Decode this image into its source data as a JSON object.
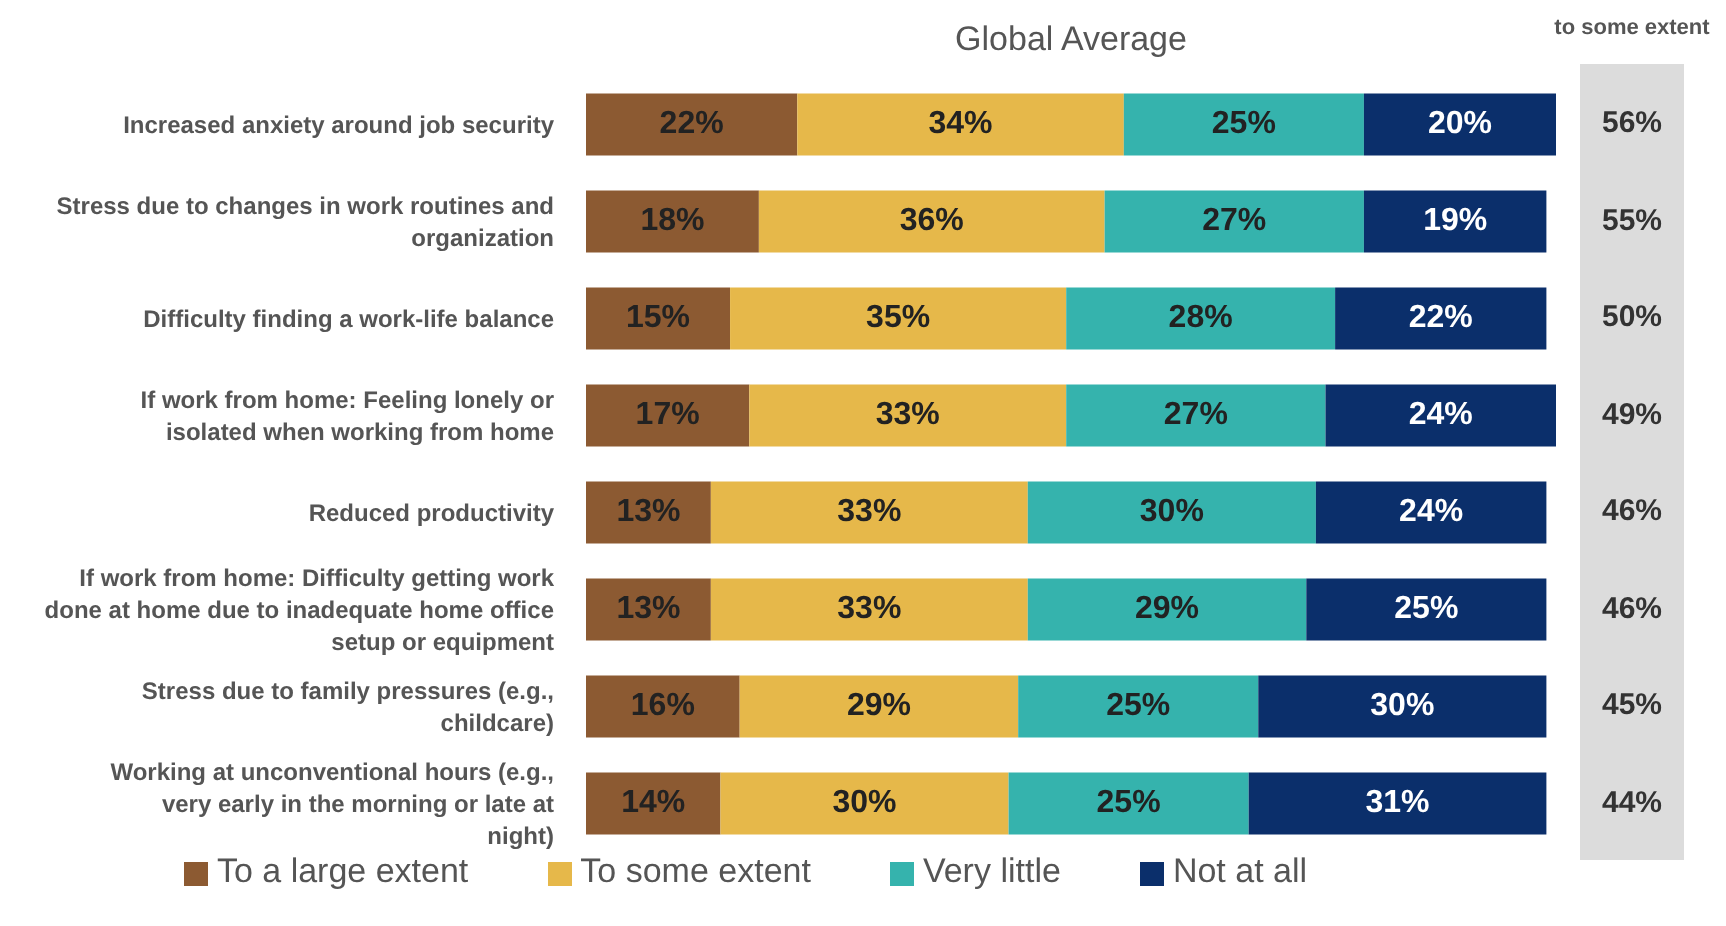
{
  "chart_data": {
    "type": "bar",
    "orientation": "horizontal",
    "stacked": true,
    "title": "Global Average",
    "categories": [
      "Increased anxiety around job security",
      "Stress due to changes in work routines and organization",
      "Difficulty finding a work-life balance",
      "If work from home: Feeling lonely or isolated when working from home",
      "Reduced productivity",
      "If work from home: Difficulty getting work done at home due to inadequate home office setup or equipment",
      "Stress due to family pressures (e.g., childcare)",
      "Working at unconventional hours (e.g., very early in the morning or late at night)"
    ],
    "series": [
      {
        "name": "To a large extent",
        "color": "#8c5a32",
        "values": [
          22,
          18,
          15,
          17,
          13,
          13,
          16,
          14
        ],
        "value_labels": [
          "22%",
          "18%",
          "15%",
          "17%",
          "13%",
          "13%",
          "16%",
          "14%"
        ]
      },
      {
        "name": "To some extent",
        "color": "#e6b84a",
        "values": [
          34,
          36,
          35,
          33,
          33,
          33,
          29,
          30
        ],
        "value_labels": [
          "34%",
          "36%",
          "35%",
          "33%",
          "33%",
          "33%",
          "29%",
          "30%"
        ]
      },
      {
        "name": "Very little",
        "color": "#35b3ad",
        "values": [
          25,
          27,
          28,
          27,
          30,
          29,
          25,
          25
        ],
        "value_labels": [
          "25%",
          "27%",
          "28%",
          "27%",
          "30%",
          "29%",
          "25%",
          "25%"
        ]
      },
      {
        "name": "Not at all",
        "color": "#0b2f6b",
        "values": [
          20,
          19,
          22,
          24,
          24,
          25,
          30,
          31
        ],
        "value_labels": [
          "20%",
          "19%",
          "22%",
          "24%",
          "24%",
          "25%",
          "30%",
          "31%"
        ]
      }
    ],
    "annotations": [
      "to some extent",
      "56%",
      "55%",
      "50%",
      "49%",
      "46%",
      "46%",
      "45%",
      "44%"
    ],
    "legend": "bottom",
    "grid": false
  }
}
